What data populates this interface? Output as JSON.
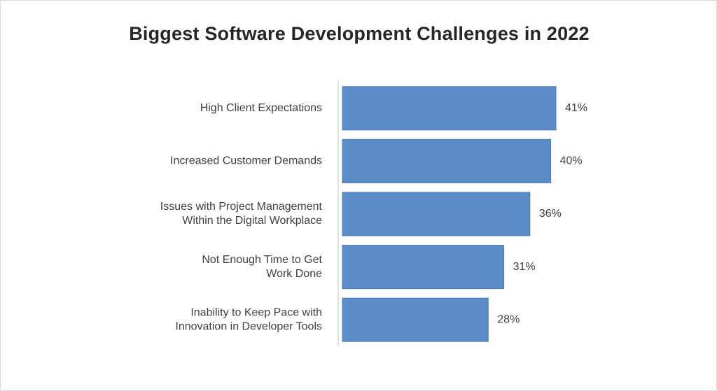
{
  "chart_data": {
    "type": "bar",
    "orientation": "horizontal",
    "title": "Biggest Software Development Challenges in 2022",
    "categories": [
      "High Client Expectations",
      "Increased Customer Demands",
      "Issues with Project Management Within the Digital Workplace",
      "Not Enough Time to Get Work Done",
      "Inability to Keep Pace with Innovation in Developer Tools"
    ],
    "category_lines": [
      [
        "High Client Expectations"
      ],
      [
        "Increased Customer Demands"
      ],
      [
        "Issues with Project Management",
        "Within the Digital Workplace"
      ],
      [
        "Not Enough Time to Get",
        "Work Done"
      ],
      [
        "Inability to Keep Pace with",
        "Innovation in Developer Tools"
      ]
    ],
    "values": [
      41,
      40,
      36,
      31,
      28
    ],
    "value_labels": [
      "41%",
      "40%",
      "36%",
      "31%",
      "28%"
    ],
    "unit": "%",
    "xlim": [
      0,
      45
    ],
    "grid": false,
    "legend": "none",
    "bar_color": "#5b8ec9"
  }
}
